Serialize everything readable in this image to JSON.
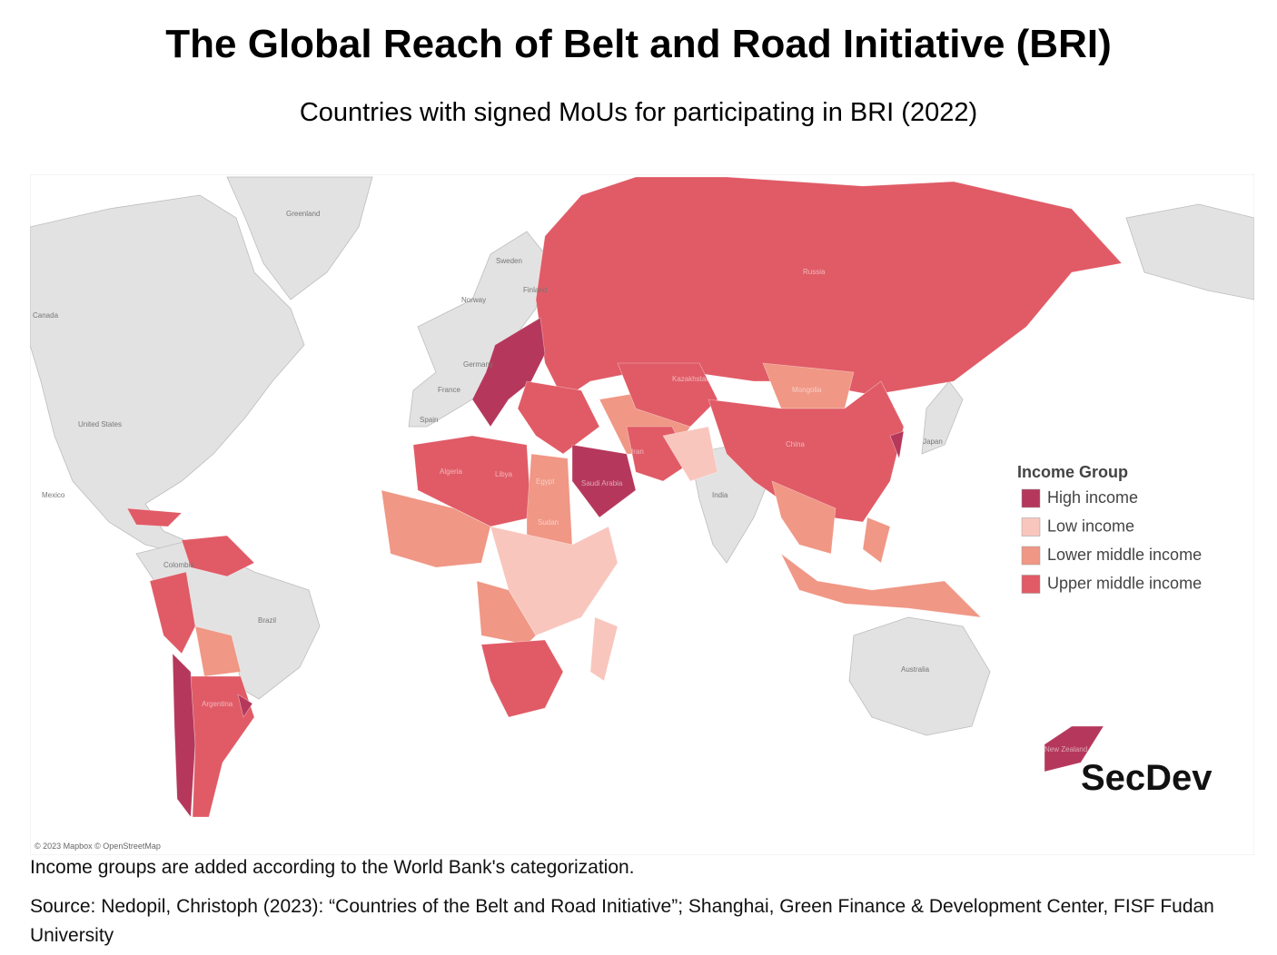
{
  "header": {
    "title": "The Global Reach of Belt and Road Initiative (BRI)",
    "subtitle": "Countries with signed MoUs for participating in BRI (2022)"
  },
  "map": {
    "labels": [
      "Greenland",
      "Canada",
      "United States",
      "Mexico",
      "Colombia",
      "Brazil",
      "Sweden",
      "Norway",
      "Finland",
      "Germany",
      "France",
      "Spain",
      "Russia",
      "Kazakhstan",
      "Mongolia",
      "China",
      "India",
      "Japan",
      "Algeria",
      "Libya",
      "Egypt",
      "Sudan",
      "Saudi Arabia",
      "Iran",
      "Argentina",
      "Australia",
      "New Zealand"
    ],
    "legend": {
      "title": "Income Group",
      "items": [
        {
          "label": "High income",
          "color": "#b5385c"
        },
        {
          "label": "Low income",
          "color": "#f8c6bd"
        },
        {
          "label": "Lower middle income",
          "color": "#f09785"
        },
        {
          "label": "Upper middle income",
          "color": "#e05b66"
        }
      ]
    },
    "attribution": "© 2023 Mapbox © OpenStreetMap",
    "logo": "SecDev"
  },
  "footer": {
    "note": "Income groups are added according to the World Bank's categorization.",
    "source": "Source: Nedopil, Christoph (2023): “Countries of the Belt and Road Initiative”; Shanghai, Green Finance & Development Center, FISF Fudan University"
  }
}
